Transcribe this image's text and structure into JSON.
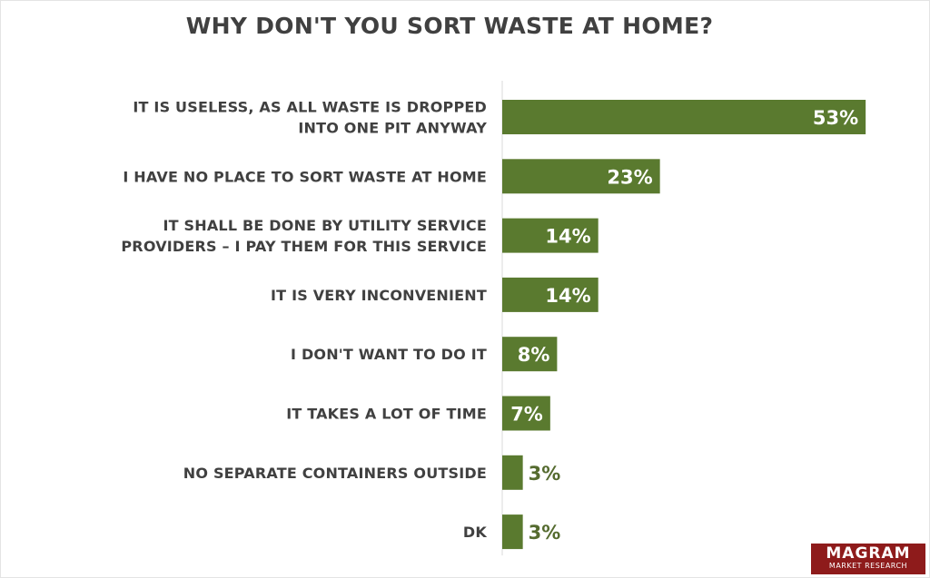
{
  "title": "WHY DON'T YOU SORT WASTE AT HOME?",
  "brand": {
    "name": "MAGRAM",
    "tagline": "MARKET RESEARCH",
    "color": "#8e1b1b"
  },
  "chart_data": {
    "type": "bar",
    "orientation": "horizontal",
    "title": "WHY DON'T YOU SORT WASTE AT HOME?",
    "unit": "%",
    "bar_color": "#5a7a2f",
    "xlim": [
      0,
      55
    ],
    "grid": false,
    "categories": [
      [
        "IT IS USELESS, AS ALL WASTE IS DROPPED",
        "INTO ONE PIT ANYWAY"
      ],
      [
        "I HAVE NO PLACE TO SORT WASTE  AT HOME"
      ],
      [
        "IT SHALL BE DONE BY UTILITY SERVICE",
        "PROVIDERS – I PAY THEM FOR THIS SERVICE"
      ],
      [
        "IT IS VERY INCONVENIENT"
      ],
      [
        "I DON'T WANT TO DO IT"
      ],
      [
        "IT TAKES A LOT OF TIME"
      ],
      [
        "NO SEPARATE CONTAINERS OUTSIDE"
      ],
      [
        "DK"
      ]
    ],
    "values": [
      53,
      23,
      14,
      14,
      8,
      7,
      3,
      3
    ],
    "labels": [
      "53%",
      "23%",
      "14%",
      "14%",
      "8%",
      "7%",
      "3%",
      "3%"
    ]
  }
}
